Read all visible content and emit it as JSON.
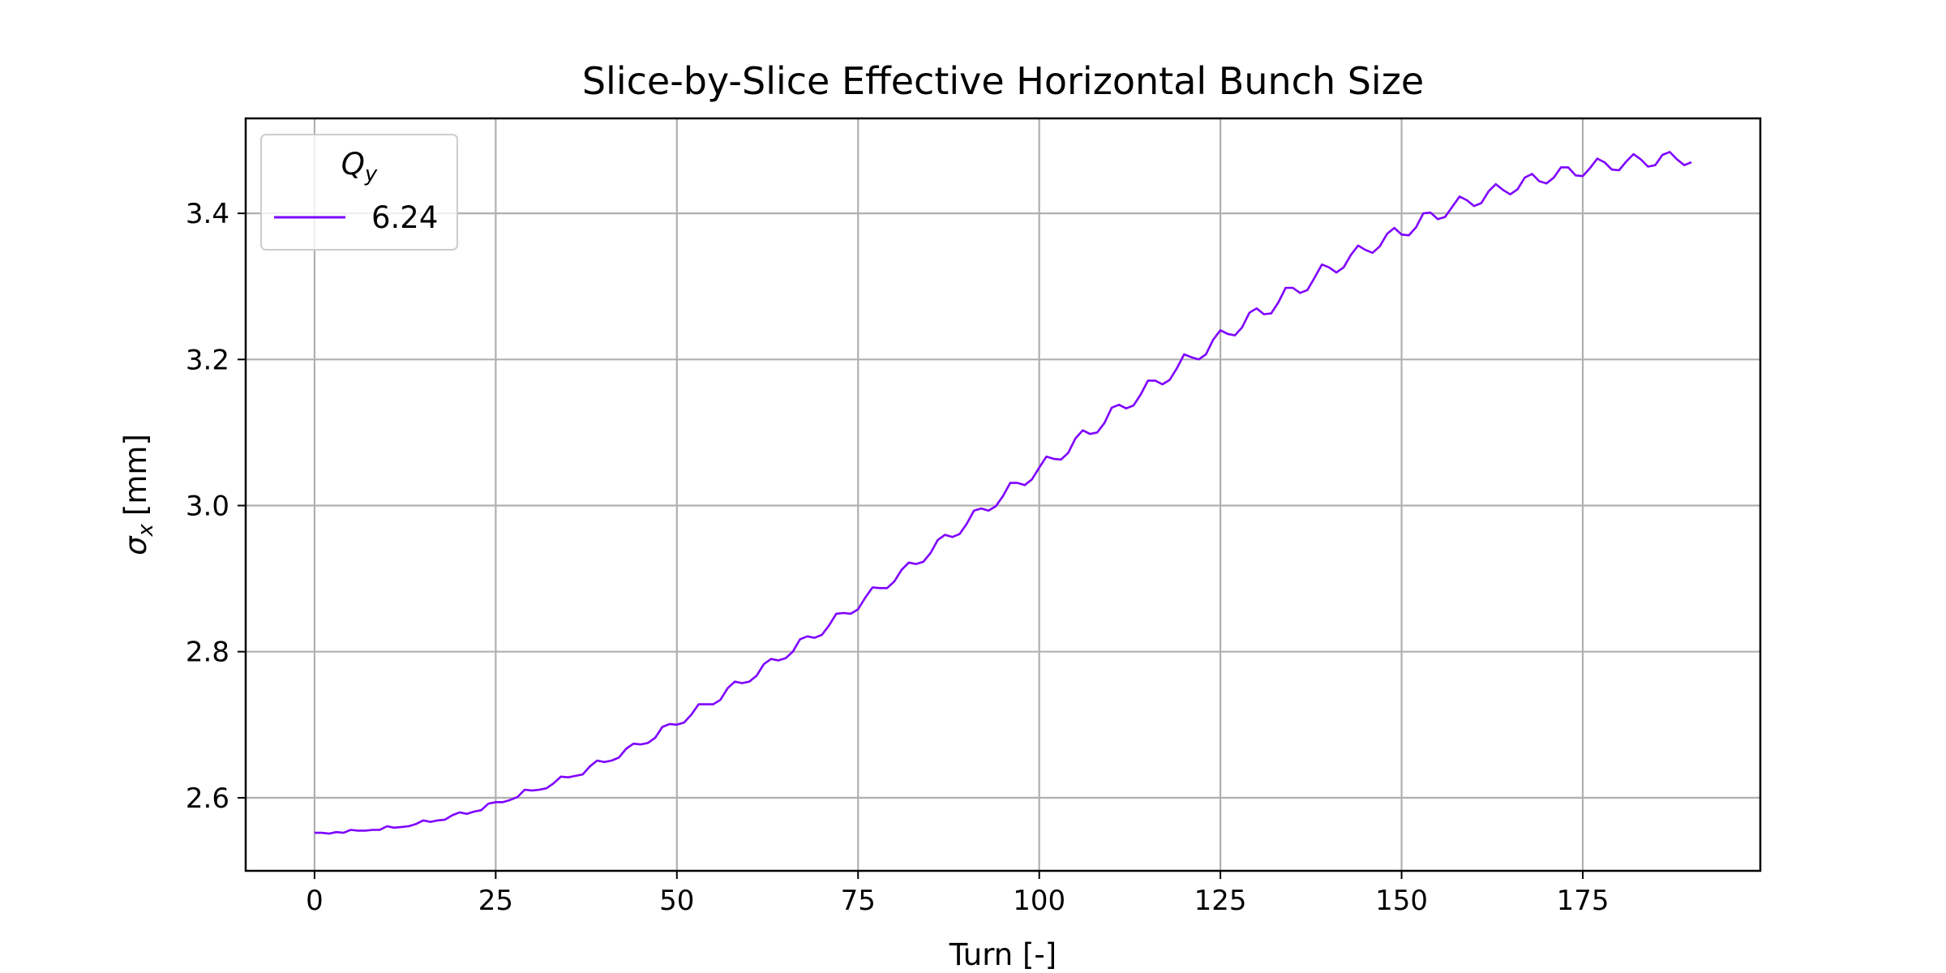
{
  "chart_data": {
    "type": "line",
    "title": "Slice-by-Slice Effective Horizontal Bunch Size",
    "xlabel": "Turn [-]",
    "ylabel_symbol": "σ",
    "ylabel_subscript": "x",
    "ylabel_unit": "[mm]",
    "xlim": [
      -9.5,
      199.5
    ],
    "ylim": [
      2.5,
      3.53
    ],
    "xticks": [
      0,
      25,
      50,
      75,
      100,
      125,
      150,
      175
    ],
    "yticks": [
      2.6,
      2.8,
      3.0,
      3.2,
      3.4
    ],
    "ytick_labels": [
      "2.6",
      "2.8",
      "3.0",
      "3.2",
      "3.4"
    ],
    "grid": true,
    "legend": {
      "placement": "upper-left",
      "title_symbol": "Q",
      "title_subscript": "y"
    },
    "series": [
      {
        "name": "6.24",
        "color": "#7f00ff",
        "x_start": 0,
        "x_step": 1,
        "values": [
          2.552,
          2.552,
          2.551,
          2.553,
          2.552,
          2.556,
          2.555,
          2.555,
          2.556,
          2.556,
          2.561,
          2.559,
          2.56,
          2.561,
          2.564,
          2.569,
          2.567,
          2.569,
          2.57,
          2.576,
          2.58,
          2.578,
          2.581,
          2.583,
          2.592,
          2.594,
          2.594,
          2.597,
          2.601,
          2.611,
          2.61,
          2.611,
          2.613,
          2.62,
          2.629,
          2.628,
          2.63,
          2.632,
          2.643,
          2.651,
          2.649,
          2.651,
          2.655,
          2.667,
          2.674,
          2.673,
          2.675,
          2.682,
          2.697,
          2.701,
          2.7,
          2.703,
          2.714,
          2.728,
          2.728,
          2.728,
          2.734,
          2.75,
          2.759,
          2.757,
          2.759,
          2.767,
          2.783,
          2.79,
          2.788,
          2.791,
          2.8,
          2.817,
          2.821,
          2.819,
          2.823,
          2.836,
          2.852,
          2.853,
          2.852,
          2.858,
          2.874,
          2.888,
          2.887,
          2.887,
          2.896,
          2.912,
          2.922,
          2.92,
          2.923,
          2.935,
          2.953,
          2.96,
          2.957,
          2.961,
          2.975,
          2.993,
          2.996,
          2.993,
          2.999,
          3.013,
          3.031,
          3.031,
          3.028,
          3.036,
          3.052,
          3.067,
          3.064,
          3.063,
          3.072,
          3.092,
          3.103,
          3.098,
          3.1,
          3.113,
          3.134,
          3.138,
          3.133,
          3.137,
          3.152,
          3.171,
          3.171,
          3.166,
          3.172,
          3.188,
          3.207,
          3.203,
          3.2,
          3.207,
          3.227,
          3.24,
          3.235,
          3.233,
          3.244,
          3.264,
          3.27,
          3.262,
          3.263,
          3.278,
          3.298,
          3.298,
          3.291,
          3.295,
          3.312,
          3.33,
          3.326,
          3.319,
          3.326,
          3.343,
          3.356,
          3.35,
          3.346,
          3.355,
          3.372,
          3.38,
          3.371,
          3.37,
          3.381,
          3.4,
          3.401,
          3.392,
          3.395,
          3.409,
          3.423,
          3.418,
          3.41,
          3.414,
          3.43,
          3.44,
          3.432,
          3.426,
          3.433,
          3.449,
          3.454,
          3.444,
          3.441,
          3.449,
          3.463,
          3.463,
          3.452,
          3.451,
          3.462,
          3.475,
          3.47,
          3.46,
          3.459,
          3.471,
          3.481,
          3.474,
          3.464,
          3.466,
          3.48,
          3.484,
          3.474,
          3.466,
          3.47
        ]
      }
    ]
  }
}
